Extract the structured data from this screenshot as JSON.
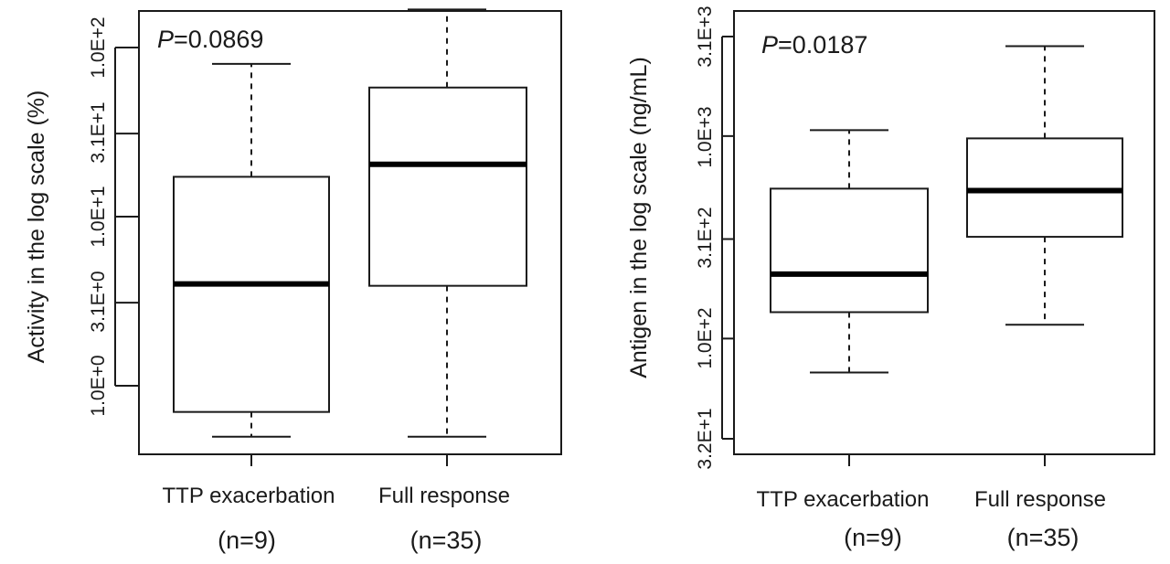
{
  "chart_data": [
    {
      "type": "boxplot",
      "scale": "log10",
      "ylabel": "Activity in the log scale (%)",
      "annotation": {
        "p_letter": "P",
        "p_rest": "=0.0869"
      },
      "yticks": [
        {
          "value": 1.0,
          "label": "1.0E+0"
        },
        {
          "value": 3.1,
          "label": "3.1E+0"
        },
        {
          "value": 10,
          "label": "1.0E+1"
        },
        {
          "value": 31,
          "label": "3.1E+1"
        },
        {
          "value": 100,
          "label": "1.0E+2"
        }
      ],
      "ylim": [
        0.47,
        200
      ],
      "categories": [
        {
          "label": "TTP exacerbation",
          "n": "(n=9)"
        },
        {
          "label": "Full response",
          "n": "(n=35)"
        }
      ],
      "boxes": [
        {
          "min": 0.5,
          "q1": 0.7,
          "median": 4.0,
          "q3": 17.2,
          "max": 80
        },
        {
          "min": 0.5,
          "q1": 3.9,
          "median": 20.4,
          "q3": 58,
          "max": 168
        }
      ]
    },
    {
      "type": "boxplot",
      "scale": "log10",
      "ylabel": "Antigen in the log scale (ng/mL)",
      "annotation": {
        "p_letter": "P",
        "p_rest": "=0.0187"
      },
      "yticks": [
        {
          "value": 32,
          "label": "3.2E+1"
        },
        {
          "value": 100,
          "label": "1.0E+2"
        },
        {
          "value": 310,
          "label": "3.1E+2"
        },
        {
          "value": 1000,
          "label": "1.0E+3"
        },
        {
          "value": 3100,
          "label": "3.1E+3"
        }
      ],
      "ylim": [
        28,
        4600
      ],
      "categories": [
        {
          "label": "TTP exacerbation",
          "n": "(n=9)"
        },
        {
          "label": "Full response",
          "n": "(n=35)"
        }
      ],
      "boxes": [
        {
          "min": 68,
          "q1": 135,
          "median": 208,
          "q3": 550,
          "max": 1070
        },
        {
          "min": 117,
          "q1": 318,
          "median": 538,
          "q3": 974,
          "max": 2780
        }
      ]
    }
  ]
}
